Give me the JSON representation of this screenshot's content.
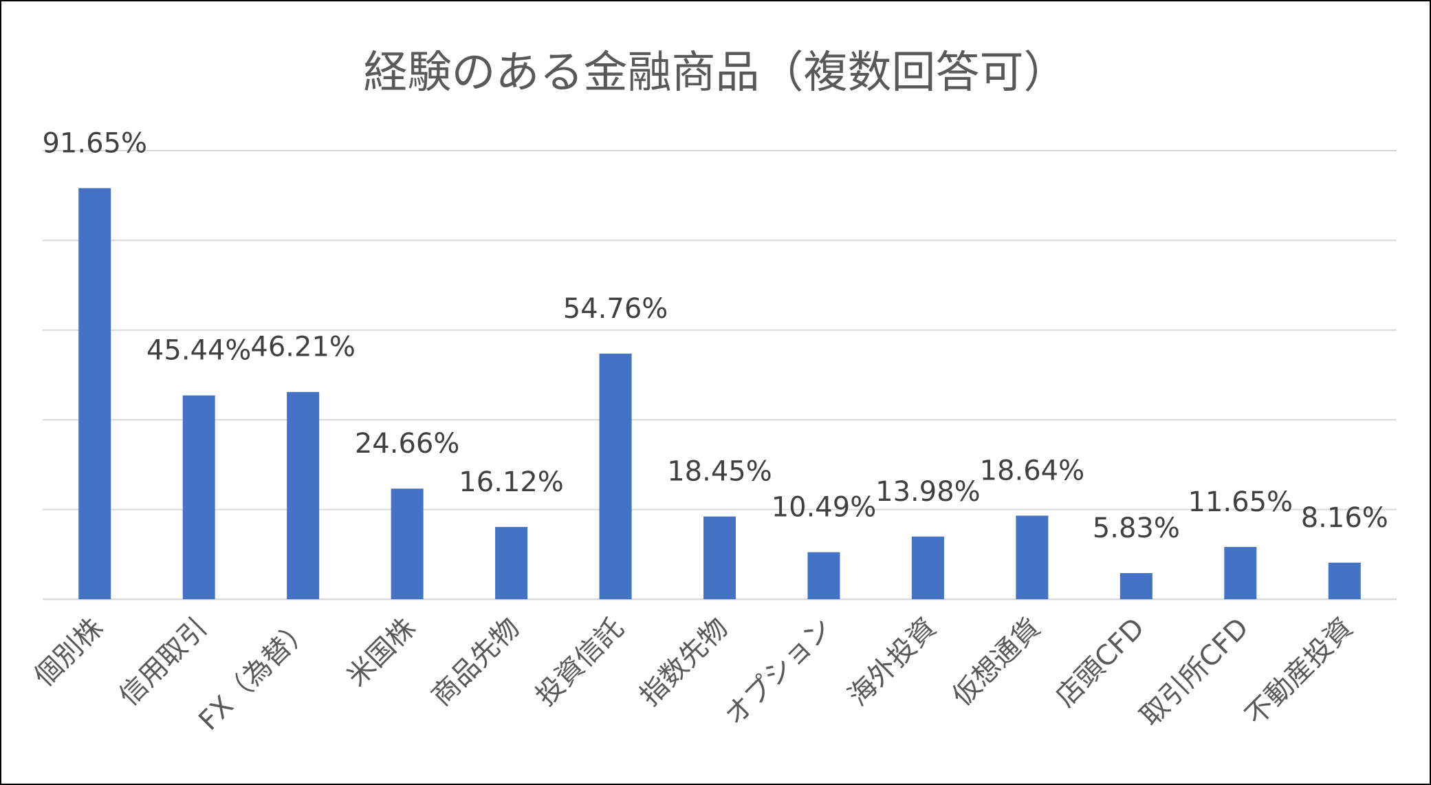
{
  "chart_data": {
    "type": "bar",
    "title": "経験のある金融商品（複数回答可）",
    "xlabel": "",
    "ylabel": "",
    "categories": [
      "個別株",
      "信用取引",
      "FX（為替）",
      "米国株",
      "商品先物",
      "投資信託",
      "指数先物",
      "オプション",
      "海外投資",
      "仮想通貨",
      "店頭CFD",
      "取引所CFD",
      "不動産投資"
    ],
    "values": [
      91.65,
      45.44,
      46.21,
      24.66,
      16.12,
      54.76,
      18.45,
      10.49,
      13.98,
      18.64,
      5.83,
      11.65,
      8.16
    ],
    "data_labels": [
      "91.65%",
      "45.44%",
      "46.21%",
      "24.66%",
      "16.12%",
      "54.76%",
      "18.45%",
      "10.49%",
      "13.98%",
      "18.64%",
      "5.83%",
      "11.65%",
      "8.16%"
    ],
    "ylim": [
      0,
      100
    ],
    "gridlines": [
      0,
      20,
      40,
      60,
      80,
      100
    ],
    "grid": true,
    "legend": "none",
    "bar_color": "#4472c4"
  }
}
